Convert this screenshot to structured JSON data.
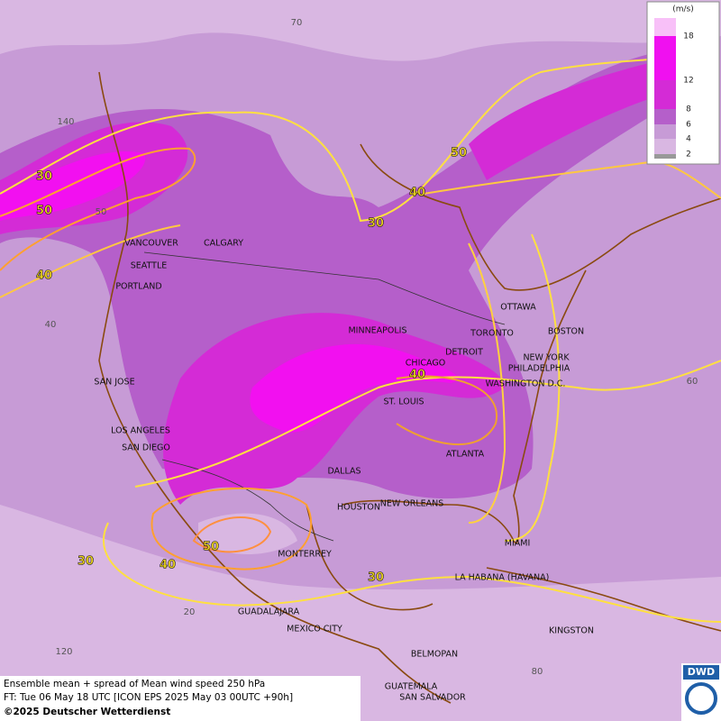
{
  "legend": {
    "unit": "(m/s)",
    "ticks": [
      18,
      12,
      8,
      6,
      4,
      2
    ]
  },
  "cities": [
    "VANCOUVER",
    "CALGARY",
    "SEATTLE",
    "PORTLAND",
    "MINNEAPOLIS",
    "TORONTO",
    "OTTAWA",
    "BOSTON",
    "DETROIT",
    "CHICAGO",
    "NEW YORK",
    "PHILADELPHIA",
    "WASHINGTON D.C.",
    "ST. LOUIS",
    "SAN JOSE",
    "LOS ANGELES",
    "SAN DIEGO",
    "DALLAS",
    "ATLANTA",
    "HOUSTON",
    "NEW ORLEANS",
    "MIAMI",
    "MONTERREY",
    "LA HABANA (HAVANA)",
    "GUADALAJARA",
    "MEXICO CITY",
    "KINGSTON",
    "BELMOPAN",
    "GUATEMALA",
    "SAN SALVADOR"
  ],
  "contour_labels": [
    30,
    50,
    40,
    50,
    40,
    30,
    40,
    50,
    40,
    30,
    30
  ],
  "grid_labels": [
    70,
    140,
    50,
    40,
    20,
    120,
    80,
    60
  ],
  "footer": {
    "lines": [
      "Ensemble mean + spread of Mean wind speed 250 hPa",
      "FT: Tue 06 May 18 UTC [ICON EPS 2025 May 03 00UTC +90h]",
      "©2025 Deutscher Wetterdienst"
    ],
    "logo": "DWD"
  }
}
